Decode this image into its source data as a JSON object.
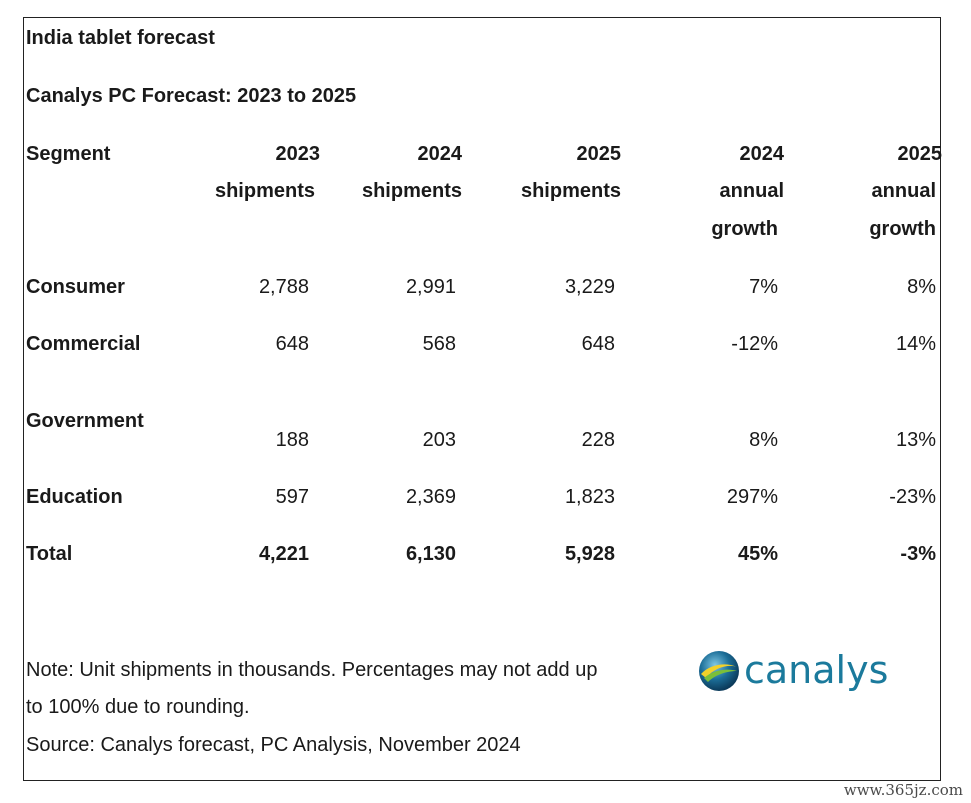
{
  "title": "India tablet forecast",
  "subtitle": "Canalys PC Forecast: 2023 to 2025",
  "table": {
    "headers": [
      [
        "Segment"
      ],
      [
        "2023",
        "shipments"
      ],
      [
        "2024",
        "shipments"
      ],
      [
        "2025",
        "shipments"
      ],
      [
        "2024",
        "annual",
        "growth"
      ],
      [
        "2025",
        "annual",
        "growth"
      ]
    ],
    "rows": [
      {
        "segment": "Consumer",
        "v2023": "2,788",
        "v2024": "2,991",
        "v2025": "3,229",
        "g2024": "7%",
        "g2025": "8%"
      },
      {
        "segment": "Commercial",
        "v2023": "648",
        "v2024": "568",
        "v2025": "648",
        "g2024": "-12%",
        "g2025": "14%"
      },
      {
        "segment": "Government",
        "v2023": "188",
        "v2024": "203",
        "v2025": "228",
        "g2024": "8%",
        "g2025": "13%"
      },
      {
        "segment": "Education",
        "v2023": "597",
        "v2024": "2,369",
        "v2025": "1,823",
        "g2024": "297%",
        "g2025": "-23%"
      },
      {
        "segment": "Total",
        "v2023": "4,221",
        "v2024": "6,130",
        "v2025": "5,928",
        "g2024": "45%",
        "g2025": "-3%"
      }
    ]
  },
  "notes": {
    "line1": "Note: Unit shipments in thousands. Percentages may not add up",
    "line2": "to 100% due to rounding.",
    "source": "Source: Canalys forecast, PC Analysis, November 2024"
  },
  "logo": {
    "text": "canalys",
    "accent": "#1b7a9c"
  },
  "watermark": "www.365jz.com"
}
